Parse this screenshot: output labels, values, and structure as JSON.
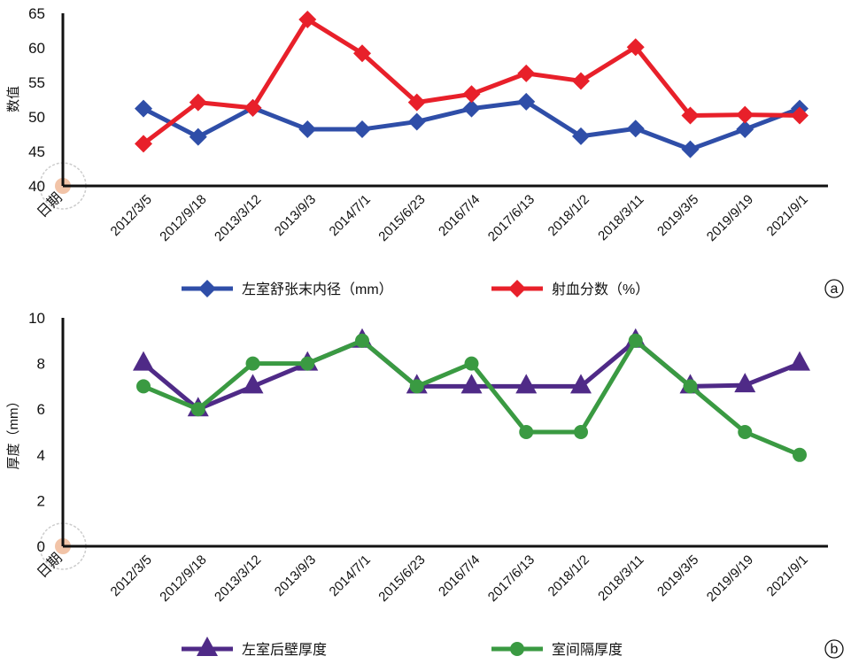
{
  "chart_data": [
    {
      "type": "line",
      "panel_label": "a",
      "title": "",
      "xlabel": "日期",
      "ylabel": "数值",
      "ylim": [
        40,
        65
      ],
      "yticks": [
        40,
        45,
        50,
        55,
        60,
        65
      ],
      "categories": [
        "2012/3/5",
        "2012/9/18",
        "2013/3/12",
        "2013/9/3",
        "2014/7/1",
        "2015/6/23",
        "2016/7/4",
        "2017/6/13",
        "2018/1/2",
        "2018/3/11",
        "2019/3/5",
        "2019/9/19",
        "2021/9/1"
      ],
      "legend_position": "bottom",
      "series": [
        {
          "name": "左室舒张末内径（mm）",
          "color": "#2f4ea8",
          "marker": "diamond",
          "values": [
            51.2,
            47.1,
            51.3,
            48.2,
            48.2,
            49.3,
            51.2,
            52.2,
            47.2,
            48.3,
            45.3,
            48.2,
            51.2
          ]
        },
        {
          "name": "射血分数（%）",
          "color": "#e8202a",
          "marker": "diamond",
          "values": [
            46.1,
            52.1,
            51.3,
            64.1,
            59.2,
            52.1,
            53.3,
            56.3,
            55.2,
            60.1,
            50.2,
            50.3,
            50.2
          ]
        }
      ]
    },
    {
      "type": "line",
      "panel_label": "b",
      "title": "",
      "xlabel": "日期",
      "ylabel": "厚度（mm）",
      "ylim": [
        0,
        10
      ],
      "yticks": [
        0,
        2,
        4,
        6,
        8,
        10
      ],
      "categories": [
        "2012/3/5",
        "2012/9/18",
        "2013/3/12",
        "2013/9/3",
        "2014/7/1",
        "2015/6/23",
        "2016/7/4",
        "2017/6/13",
        "2018/1/2",
        "2018/3/11",
        "2019/3/5",
        "2019/9/19",
        "2021/9/1"
      ],
      "legend_position": "bottom",
      "series": [
        {
          "name": "左室后壁厚度",
          "color": "#4f2a87",
          "marker": "triangle",
          "values": [
            8.0,
            6.0,
            7.0,
            8.0,
            9.0,
            7.0,
            7.0,
            7.0,
            7.0,
            9.0,
            7.0,
            7.05,
            8.0
          ]
        },
        {
          "name": "室间隔厚度",
          "color": "#3a9a42",
          "marker": "circle",
          "values": [
            7.0,
            6.0,
            8.0,
            8.0,
            9.0,
            7.0,
            8.0,
            5.0,
            5.0,
            9.0,
            7.0,
            5.0,
            4.0
          ]
        }
      ]
    }
  ]
}
